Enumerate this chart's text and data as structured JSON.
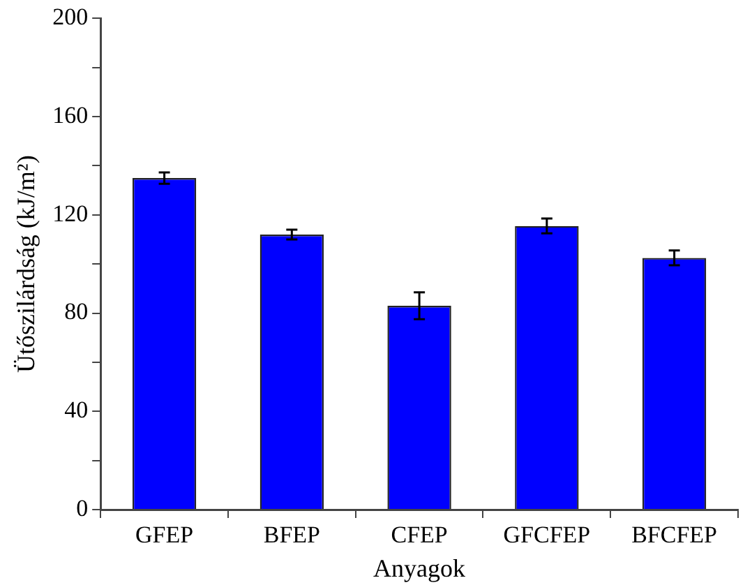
{
  "chart_data": {
    "type": "bar",
    "xlabel": "Anyagok",
    "ylabel": "Ütőszilárdság (kJ/m²)",
    "categories": [
      "GFEP",
      "BFEP",
      "CFEP",
      "GFCFEP",
      "BFCFEP"
    ],
    "values": [
      135,
      112,
      83,
      115.5,
      102.5
    ],
    "errors": [
      2.3,
      2,
      5.5,
      3,
      3
    ],
    "color": "#0000ff",
    "ylim": [
      0,
      200
    ],
    "yticks": [
      0,
      {
        "value": 20,
        "label": null
      },
      40,
      {
        "value": 60,
        "label": null
      },
      80,
      {
        "value": 100,
        "label": null
      },
      120,
      {
        "value": 140,
        "label": null
      },
      160,
      {
        "value": 180,
        "label": null
      },
      200
    ],
    "grid": false,
    "legend": false
  }
}
